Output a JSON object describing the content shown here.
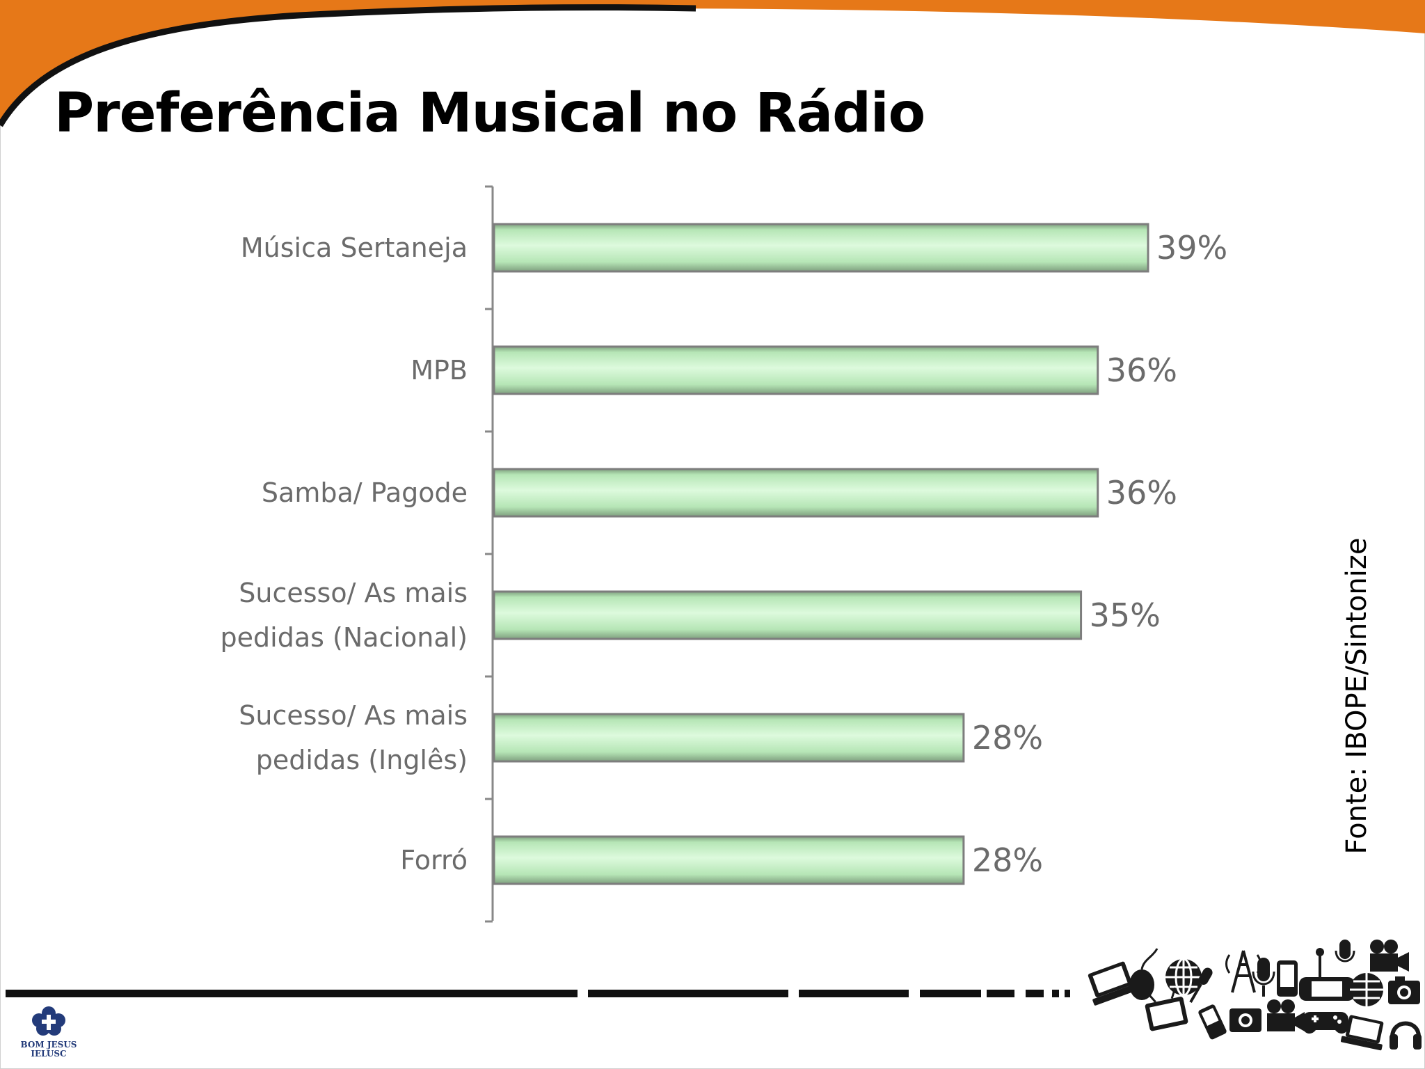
{
  "slide": {
    "title": "Preferência Musical no Rádio",
    "source": "Fonte: IBOPE/Sintonize"
  },
  "logo": {
    "text": "BOM JESUS\nIELUSC"
  },
  "colors": {
    "accent_orange": "#E67818",
    "bar_fill": "#b8ecb8",
    "bar_border": "#7d7d7d",
    "label_text": "#6b6b6b",
    "logo_blue": "#233b7a"
  },
  "chart_data": {
    "type": "bar",
    "orientation": "horizontal",
    "categories": [
      "Música Sertaneja",
      "MPB",
      "Samba/ Pagode",
      "Sucesso/ As mais pedidas (Nacional)",
      "Sucesso/ As mais pedidas (Inglês)",
      "Forró"
    ],
    "category_lines": [
      [
        "Música Sertaneja"
      ],
      [
        "MPB"
      ],
      [
        "Samba/ Pagode"
      ],
      [
        "Sucesso/ As mais",
        "pedidas (Nacional)"
      ],
      [
        "Sucesso/ As mais",
        "pedidas (Inglês)"
      ],
      [
        "Forró"
      ]
    ],
    "values": [
      39,
      36,
      36,
      35,
      28,
      28
    ],
    "data_labels": [
      "39%",
      "36%",
      "36%",
      "35%",
      "28%",
      "28%"
    ],
    "unit": "%",
    "xlim": [
      0,
      39
    ],
    "grid": false,
    "legend": "none"
  },
  "decoration_icons": [
    "laptop-icon",
    "mouse-icon",
    "globe-icon",
    "microphone-icon",
    "radio-tower-icon",
    "smartphone-icon",
    "gamepad-icon",
    "camera-icon",
    "movie-camera-icon",
    "tv-icon",
    "headphones-icon",
    "pda-icon"
  ]
}
